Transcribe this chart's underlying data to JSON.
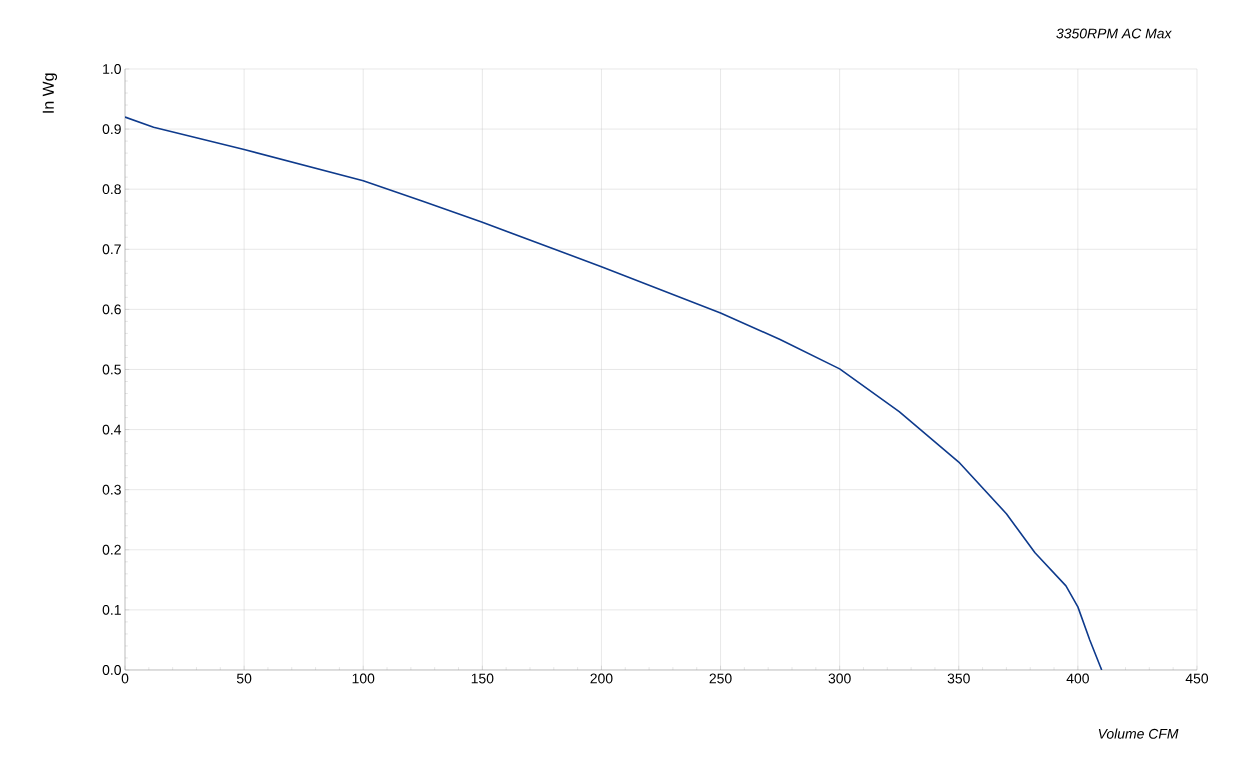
{
  "chart_data": {
    "type": "line",
    "title": "3350RPM AC Max",
    "xlabel": "Volume CFM",
    "ylabel": "In Wg",
    "x": [
      0,
      12,
      50,
      100,
      125,
      150,
      200,
      250,
      275,
      300,
      325,
      350,
      370,
      382,
      395,
      400,
      405,
      410
    ],
    "series": [
      {
        "color": "#0e3a8c",
        "values": [
          0.92,
          0.903,
          0.866,
          0.814,
          0.78,
          0.745,
          0.671,
          0.594,
          0.55,
          0.501,
          0.43,
          0.346,
          0.26,
          0.195,
          0.14,
          0.105,
          0.05,
          0.0
        ]
      }
    ],
    "xlim": [
      0,
      450
    ],
    "ylim": [
      0,
      1.0
    ],
    "xticks": [
      0,
      50,
      100,
      150,
      200,
      250,
      300,
      350,
      400,
      450
    ],
    "yticks": [
      {
        "value": 0,
        "label": "0.0"
      },
      {
        "value": 0.1,
        "label": "0.1"
      },
      {
        "value": 0.2,
        "label": "0.2"
      },
      {
        "value": 0.3,
        "label": "0.3"
      },
      {
        "value": 0.4,
        "label": "0.4"
      },
      {
        "value": 0.5,
        "label": "0.5"
      },
      {
        "value": 0.6,
        "label": "0.6"
      },
      {
        "value": 0.7,
        "label": "0.7"
      },
      {
        "value": 0.8,
        "label": "0.8"
      },
      {
        "value": 0.9,
        "label": "0.9"
      },
      {
        "value": 1.0,
        "label": "1.0"
      }
    ],
    "grid": true,
    "marker": "none",
    "line_style": "solid"
  }
}
